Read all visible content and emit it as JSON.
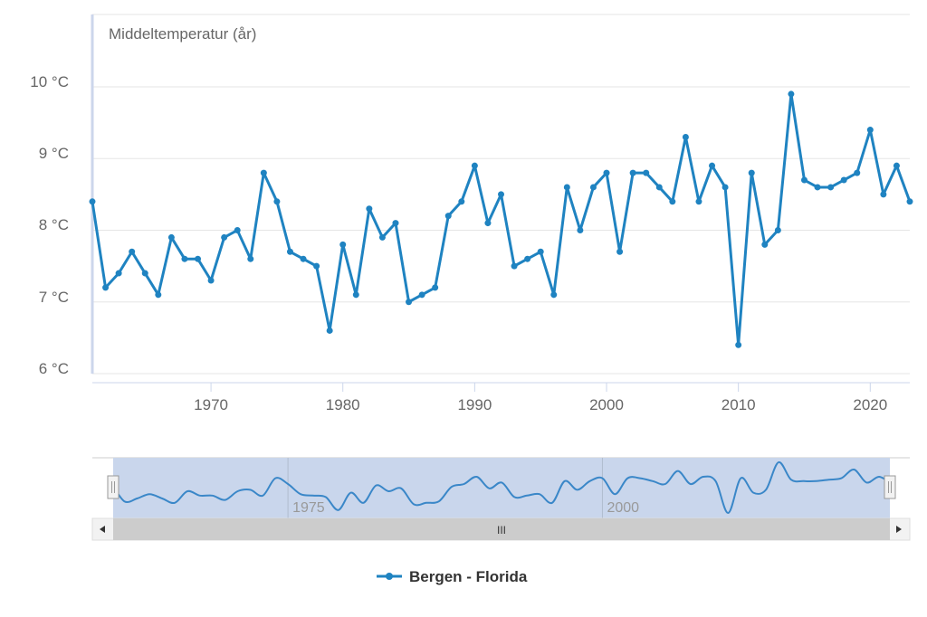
{
  "chart_data": {
    "type": "line",
    "title": "Middeltemperatur (år)",
    "xlabel": "",
    "ylabel": "",
    "x": [
      1961,
      1962,
      1963,
      1964,
      1965,
      1966,
      1967,
      1968,
      1969,
      1970,
      1971,
      1972,
      1973,
      1974,
      1975,
      1976,
      1977,
      1978,
      1979,
      1980,
      1981,
      1982,
      1983,
      1984,
      1985,
      1986,
      1987,
      1988,
      1989,
      1990,
      1991,
      1992,
      1993,
      1994,
      1995,
      1996,
      1997,
      1998,
      1999,
      2000,
      2001,
      2002,
      2003,
      2004,
      2005,
      2006,
      2007,
      2008,
      2009,
      2010,
      2011,
      2012,
      2013,
      2014,
      2015,
      2016,
      2017,
      2018,
      2019,
      2020,
      2021,
      2022,
      2023
    ],
    "series": [
      {
        "name": "Bergen - Florida",
        "color": "#1f83c1",
        "values": [
          8.4,
          7.2,
          7.4,
          7.7,
          7.4,
          7.1,
          7.9,
          7.6,
          7.6,
          7.3,
          7.9,
          8.0,
          7.6,
          8.8,
          8.4,
          7.7,
          7.6,
          7.5,
          6.6,
          7.8,
          7.1,
          8.3,
          7.9,
          8.1,
          7.0,
          7.1,
          7.2,
          8.2,
          8.4,
          8.9,
          8.1,
          8.5,
          7.5,
          7.6,
          7.7,
          7.1,
          8.6,
          8.0,
          8.6,
          8.8,
          7.7,
          8.8,
          8.8,
          8.6,
          8.4,
          9.3,
          8.4,
          8.9,
          8.6,
          6.4,
          8.8,
          7.8,
          8.0,
          9.9,
          8.7,
          8.6,
          8.6,
          8.7,
          8.8,
          9.4,
          8.5,
          8.9,
          8.4
        ]
      }
    ],
    "xlim": [
      1961,
      2023
    ],
    "ylim": [
      6,
      10
    ],
    "x_ticks": [
      "1970",
      "1980",
      "1990",
      "2000",
      "2010",
      "2020"
    ],
    "y_ticks": [
      "6 °C",
      "7 °C",
      "8 °C",
      "9 °C",
      "10 °C"
    ],
    "grid": "horizontal",
    "legend_position": "bottom-center",
    "navigator": {
      "ticks": [
        "1975",
        "2000"
      ],
      "scrollbar_grip": "III"
    }
  }
}
